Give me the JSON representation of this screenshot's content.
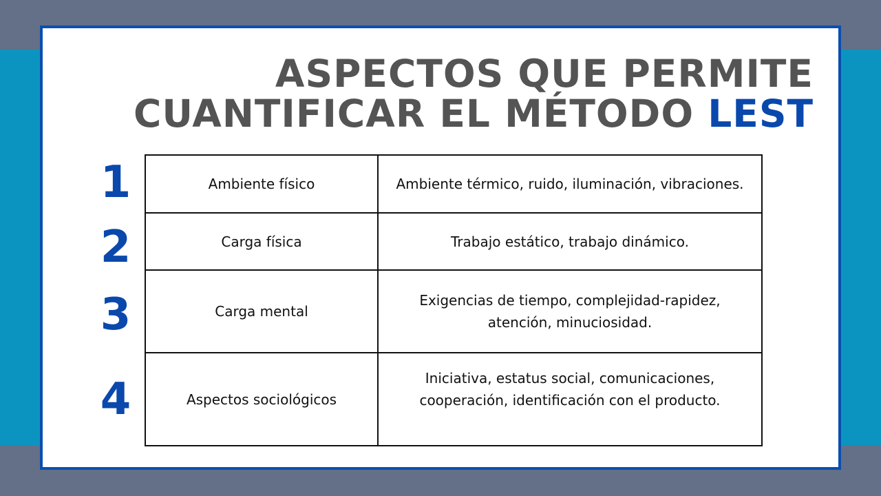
{
  "title": {
    "line1": "ASPECTOS QUE PERMITE",
    "line2_prefix": "CUANTIFICAR EL MÉTODO",
    "line2_accent": "LEST"
  },
  "colors": {
    "accent": "#0a48ac",
    "title": "#545454",
    "band": "#647087",
    "background": "#0c94c0"
  },
  "rows": [
    {
      "number": "1",
      "aspect": "Ambiente físico",
      "details": "Ambiente térmico, ruido, iluminación, vibraciones."
    },
    {
      "number": "2",
      "aspect": "Carga física",
      "details": "Trabajo estático, trabajo dinámico."
    },
    {
      "number": "3",
      "aspect": "Carga mental",
      "details": "Exigencias de tiempo, complejidad-rapidez, atención, minuciosidad."
    },
    {
      "number": "4",
      "aspect": "Aspectos sociológicos",
      "details": "Iniciativa, estatus social, comunicaciones, cooperación, identificación con el producto."
    }
  ]
}
